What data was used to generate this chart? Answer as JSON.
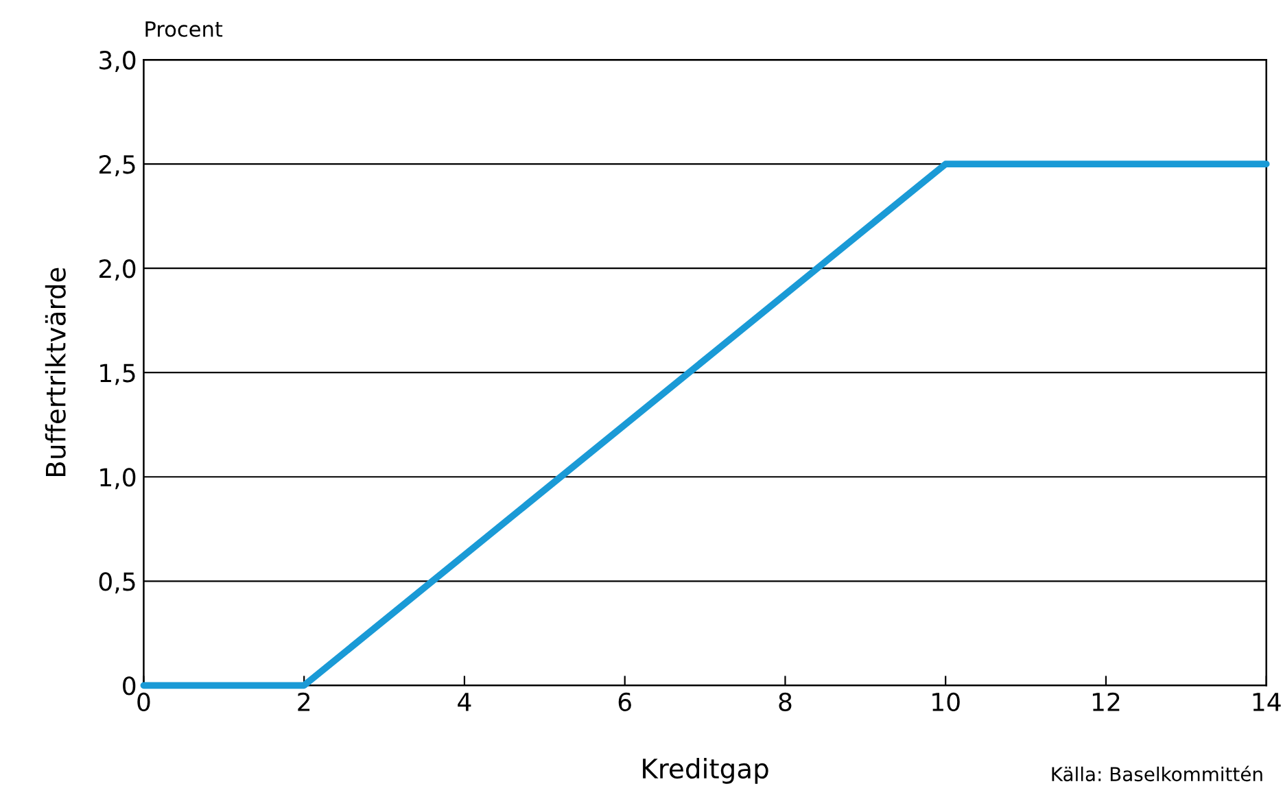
{
  "chart_data": {
    "type": "line",
    "xlabel": "Kreditgap",
    "ylabel": "Buffertriktvärde",
    "annotations": [
      "Procent",
      "Källa: Baselkommittén"
    ],
    "x": [
      0,
      2,
      10,
      14
    ],
    "series": [
      {
        "color": "#1a9ad6",
        "values": [
          0,
          0,
          2.5,
          2.5
        ]
      }
    ],
    "xlim": [
      0,
      14
    ],
    "xticks": [
      0,
      2,
      4,
      6,
      8,
      10,
      12,
      14
    ],
    "ylim": [
      0,
      3
    ],
    "yticks": [
      0,
      {
        "value": 0.5,
        "label": "0,5"
      },
      {
        "value": 1,
        "label": "1,0"
      },
      {
        "value": 1.5,
        "label": "1,5"
      },
      {
        "value": 2,
        "label": "2,0"
      },
      {
        "value": 2.5,
        "label": "2,5"
      },
      {
        "value": 3,
        "label": "3,0"
      }
    ],
    "grid": "y",
    "marker": "none",
    "line_style": "solid"
  }
}
